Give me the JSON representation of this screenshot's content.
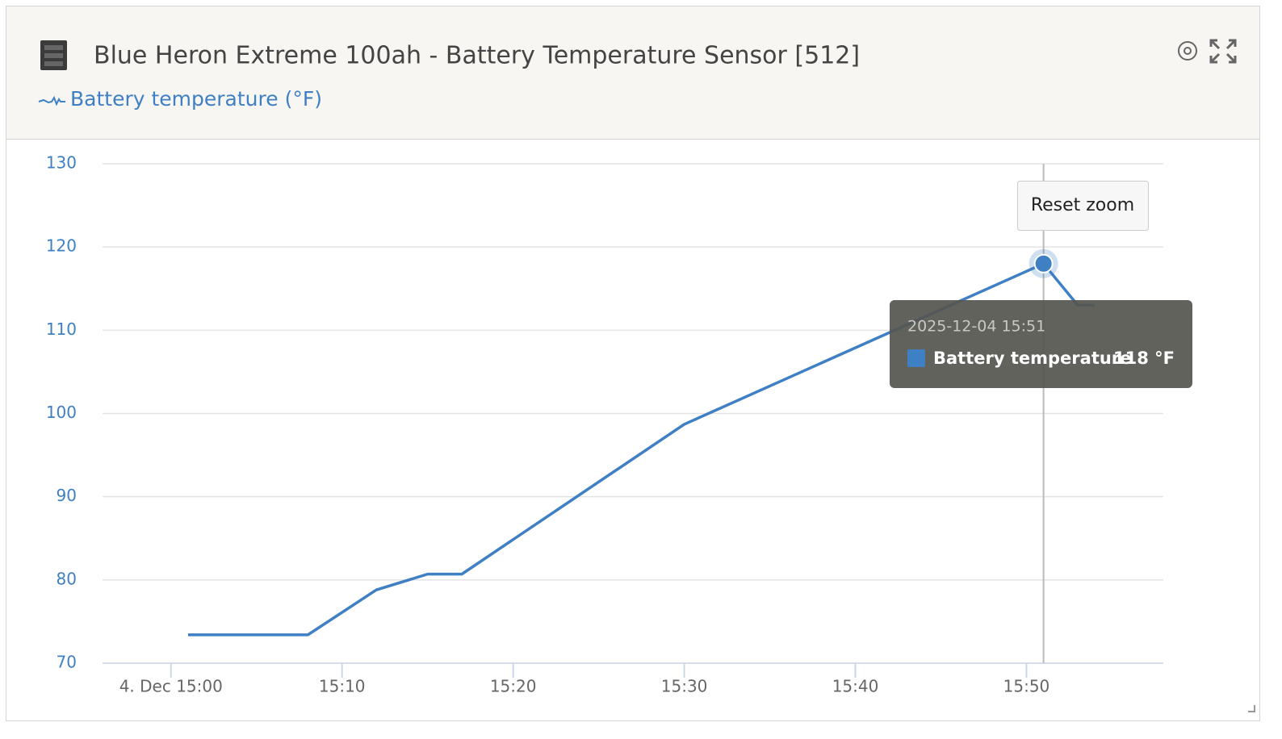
{
  "header": {
    "title": "Blue Heron Extreme 100ah - Battery Temperature Sensor [512]",
    "legend_label": "Battery temperature (°F)"
  },
  "ui": {
    "reset_zoom": "Reset zoom"
  },
  "chart_data": {
    "type": "line",
    "x": [
      "2025-12-04 15:01",
      "2025-12-04 15:08",
      "2025-12-04 15:12",
      "2025-12-04 15:15",
      "2025-12-04 15:17",
      "2025-12-04 15:30",
      "2025-12-04 15:51",
      "2025-12-04 15:53",
      "2025-12-04 15:54"
    ],
    "series": [
      {
        "name": "Battery temperature",
        "color": "#3f7fc4",
        "values": [
          73.4,
          73.4,
          78.8,
          80.7,
          80.7,
          98.7,
          118,
          113,
          113
        ]
      }
    ],
    "xlim": [
      "2025-12-04 14:56",
      "2025-12-04 15:58"
    ],
    "xticks": [
      {
        "value": "2025-12-04 15:00",
        "label": "4. Dec 15:00"
      },
      {
        "value": "2025-12-04 15:10",
        "label": "15:10"
      },
      {
        "value": "2025-12-04 15:20",
        "label": "15:20"
      },
      {
        "value": "2025-12-04 15:30",
        "label": "15:30"
      },
      {
        "value": "2025-12-04 15:40",
        "label": "15:40"
      },
      {
        "value": "2025-12-04 15:50",
        "label": "15:50"
      }
    ],
    "ylim": [
      70,
      130
    ],
    "yticks": [
      70,
      80,
      90,
      100,
      110,
      120,
      130
    ],
    "grid": true,
    "tooltip": {
      "title": "2025-12-04 15:51",
      "value": "118 °F"
    }
  }
}
